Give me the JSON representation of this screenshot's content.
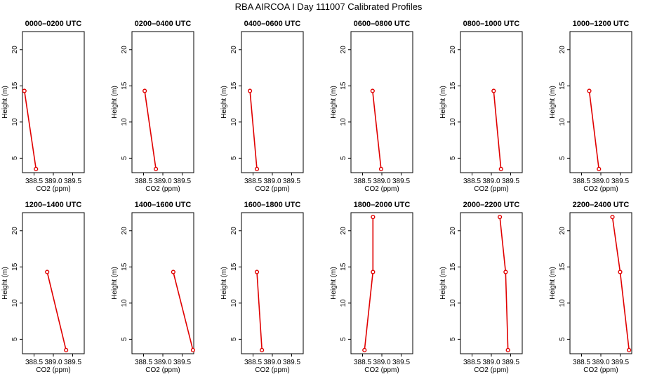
{
  "figure": {
    "title": "RBA AIRCOA I  Day 111007  Calibrated Profiles"
  },
  "chart_data": [
    {
      "type": "line",
      "title": "0000–0200 UTC",
      "xlabel": "CO2 (ppm)",
      "ylabel": "Height (m)",
      "xlim": [
        388.2,
        389.8
      ],
      "ylim": [
        3,
        22.5
      ],
      "xticks": [
        "388.5",
        "389.0",
        "389.5"
      ],
      "yticks": [
        "5",
        "10",
        "15",
        "20"
      ],
      "points": [
        {
          "x": 388.25,
          "y": 14.3
        },
        {
          "x": 388.55,
          "y": 3.5
        }
      ]
    },
    {
      "type": "line",
      "title": "0200–0400 UTC",
      "xlabel": "CO2 (ppm)",
      "ylabel": "Height (m)",
      "xlim": [
        388.2,
        389.8
      ],
      "ylim": [
        3,
        22.5
      ],
      "xticks": [
        "388.5",
        "389.0",
        "389.5"
      ],
      "yticks": [
        "5",
        "10",
        "15",
        "20"
      ],
      "points": [
        {
          "x": 388.53,
          "y": 14.3
        },
        {
          "x": 388.82,
          "y": 3.5
        }
      ]
    },
    {
      "type": "line",
      "title": "0400–0600 UTC",
      "xlabel": "CO2 (ppm)",
      "ylabel": "Height (m)",
      "xlim": [
        388.2,
        389.8
      ],
      "ylim": [
        3,
        22.5
      ],
      "xticks": [
        "388.5",
        "389.0",
        "389.5"
      ],
      "yticks": [
        "5",
        "10",
        "15",
        "20"
      ],
      "points": [
        {
          "x": 388.42,
          "y": 14.3
        },
        {
          "x": 388.6,
          "y": 3.5
        }
      ]
    },
    {
      "type": "line",
      "title": "0600–0800 UTC",
      "xlabel": "CO2 (ppm)",
      "ylabel": "Height (m)",
      "xlim": [
        388.2,
        389.8
      ],
      "ylim": [
        3,
        22.5
      ],
      "xticks": [
        "388.5",
        "389.0",
        "389.5"
      ],
      "yticks": [
        "5",
        "10",
        "15",
        "20"
      ],
      "points": [
        {
          "x": 388.76,
          "y": 14.3
        },
        {
          "x": 388.98,
          "y": 3.5
        }
      ]
    },
    {
      "type": "line",
      "title": "0800–1000 UTC",
      "xlabel": "CO2 (ppm)",
      "ylabel": "Height (m)",
      "xlim": [
        388.2,
        389.8
      ],
      "ylim": [
        3,
        22.5
      ],
      "xticks": [
        "388.5",
        "389.0",
        "389.5"
      ],
      "yticks": [
        "5",
        "10",
        "15",
        "20"
      ],
      "points": [
        {
          "x": 389.06,
          "y": 14.3
        },
        {
          "x": 389.25,
          "y": 3.5
        }
      ]
    },
    {
      "type": "line",
      "title": "1000–1200 UTC",
      "xlabel": "CO2 (ppm)",
      "ylabel": "Height (m)",
      "xlim": [
        388.2,
        389.8
      ],
      "ylim": [
        3,
        22.5
      ],
      "xticks": [
        "388.5",
        "389.0",
        "389.5"
      ],
      "yticks": [
        "5",
        "10",
        "15",
        "20"
      ],
      "points": [
        {
          "x": 388.7,
          "y": 14.3
        },
        {
          "x": 388.95,
          "y": 3.5
        }
      ]
    },
    {
      "type": "line",
      "title": "1200–1400 UTC",
      "xlabel": "CO2 (ppm)",
      "ylabel": "Height (m)",
      "xlim": [
        388.2,
        389.8
      ],
      "ylim": [
        3,
        22.5
      ],
      "xticks": [
        "388.5",
        "389.0",
        "389.5"
      ],
      "yticks": [
        "5",
        "10",
        "15",
        "20"
      ],
      "points": [
        {
          "x": 388.84,
          "y": 14.3
        },
        {
          "x": 389.33,
          "y": 3.5
        }
      ]
    },
    {
      "type": "line",
      "title": "1400–1600 UTC",
      "xlabel": "CO2 (ppm)",
      "ylabel": "Height (m)",
      "xlim": [
        388.2,
        389.8
      ],
      "ylim": [
        3,
        22.5
      ],
      "xticks": [
        "388.5",
        "389.0",
        "389.5"
      ],
      "yticks": [
        "5",
        "10",
        "15",
        "20"
      ],
      "points": [
        {
          "x": 389.27,
          "y": 14.3
        },
        {
          "x": 389.78,
          "y": 3.5
        }
      ]
    },
    {
      "type": "line",
      "title": "1600–1800 UTC",
      "xlabel": "CO2 (ppm)",
      "ylabel": "Height (m)",
      "xlim": [
        388.2,
        389.8
      ],
      "ylim": [
        3,
        22.5
      ],
      "xticks": [
        "388.5",
        "389.0",
        "389.5"
      ],
      "yticks": [
        "5",
        "10",
        "15",
        "20"
      ],
      "points": [
        {
          "x": 388.6,
          "y": 14.3
        },
        {
          "x": 388.73,
          "y": 3.5
        }
      ]
    },
    {
      "type": "line",
      "title": "1800–2000 UTC",
      "xlabel": "CO2 (ppm)",
      "ylabel": "Height (m)",
      "xlim": [
        388.2,
        389.8
      ],
      "ylim": [
        3,
        22.5
      ],
      "xticks": [
        "388.5",
        "389.0",
        "389.5"
      ],
      "yticks": [
        "5",
        "10",
        "15",
        "20"
      ],
      "points": [
        {
          "x": 388.77,
          "y": 21.9
        },
        {
          "x": 388.77,
          "y": 14.3
        },
        {
          "x": 388.55,
          "y": 3.5
        }
      ]
    },
    {
      "type": "line",
      "title": "2000–2200 UTC",
      "xlabel": "CO2 (ppm)",
      "ylabel": "Height (m)",
      "xlim": [
        388.2,
        389.8
      ],
      "ylim": [
        3,
        22.5
      ],
      "xticks": [
        "388.5",
        "389.0",
        "389.5"
      ],
      "yticks": [
        "5",
        "10",
        "15",
        "20"
      ],
      "points": [
        {
          "x": 389.22,
          "y": 21.9
        },
        {
          "x": 389.37,
          "y": 14.3
        },
        {
          "x": 389.43,
          "y": 3.5
        }
      ]
    },
    {
      "type": "line",
      "title": "2200–2400 UTC",
      "xlabel": "CO2 (ppm)",
      "ylabel": "Height (m)",
      "xlim": [
        388.2,
        389.8
      ],
      "ylim": [
        3,
        22.5
      ],
      "xticks": [
        "388.5",
        "389.0",
        "389.5"
      ],
      "yticks": [
        "5",
        "10",
        "15",
        "20"
      ],
      "points": [
        {
          "x": 389.3,
          "y": 21.9
        },
        {
          "x": 389.5,
          "y": 14.3
        },
        {
          "x": 389.73,
          "y": 3.5
        }
      ]
    }
  ],
  "style": {
    "line_color": "#e00000",
    "axis_color": "#000000",
    "background": "#ffffff"
  }
}
